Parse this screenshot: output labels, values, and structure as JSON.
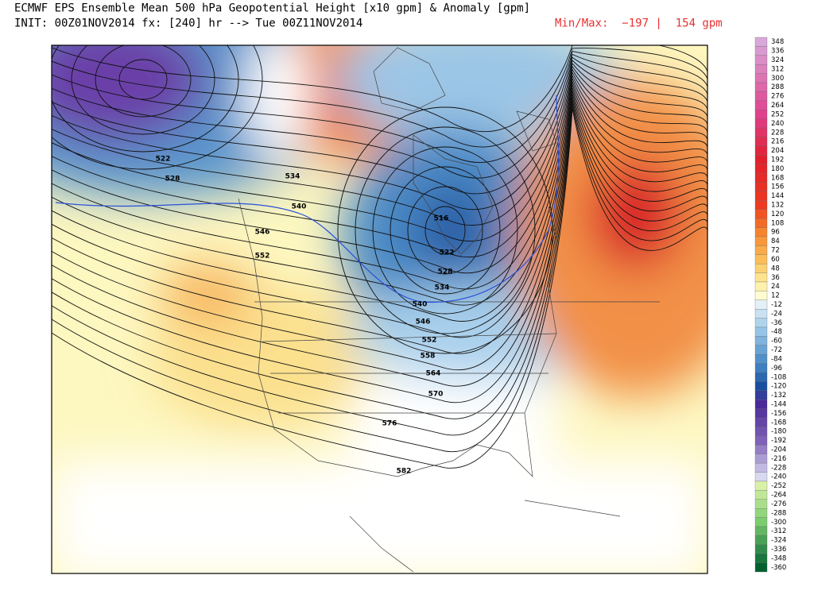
{
  "header": {
    "title": "ECMWF EPS Ensemble Mean 500 hPa Geopotential Height [x10 gpm] & Anomaly [gpm]",
    "init": "INIT: 00Z01NOV2014 fx: [240] hr --> Tue 00Z11NOV2014",
    "minmax": "Min/Max:  −197 |  154 gpm"
  },
  "contour_labels": [
    "516",
    "522",
    "528",
    "534",
    "540",
    "546",
    "552",
    "558",
    "564",
    "570",
    "576",
    "582",
    "522",
    "528",
    "534",
    "540",
    "546",
    "552"
  ],
  "colorbar": {
    "labels": [
      348,
      336,
      324,
      312,
      300,
      288,
      276,
      264,
      252,
      240,
      228,
      216,
      204,
      192,
      180,
      168,
      156,
      144,
      132,
      120,
      108,
      96,
      84,
      72,
      60,
      48,
      36,
      24,
      12,
      -12,
      -24,
      -36,
      -48,
      -60,
      -72,
      -84,
      -96,
      -108,
      -120,
      -132,
      -144,
      -156,
      -168,
      -180,
      -192,
      -204,
      -216,
      -228,
      -240,
      -252,
      -264,
      -276,
      -288,
      -300,
      -312,
      -324,
      -336,
      -348,
      -360
    ]
  }
}
